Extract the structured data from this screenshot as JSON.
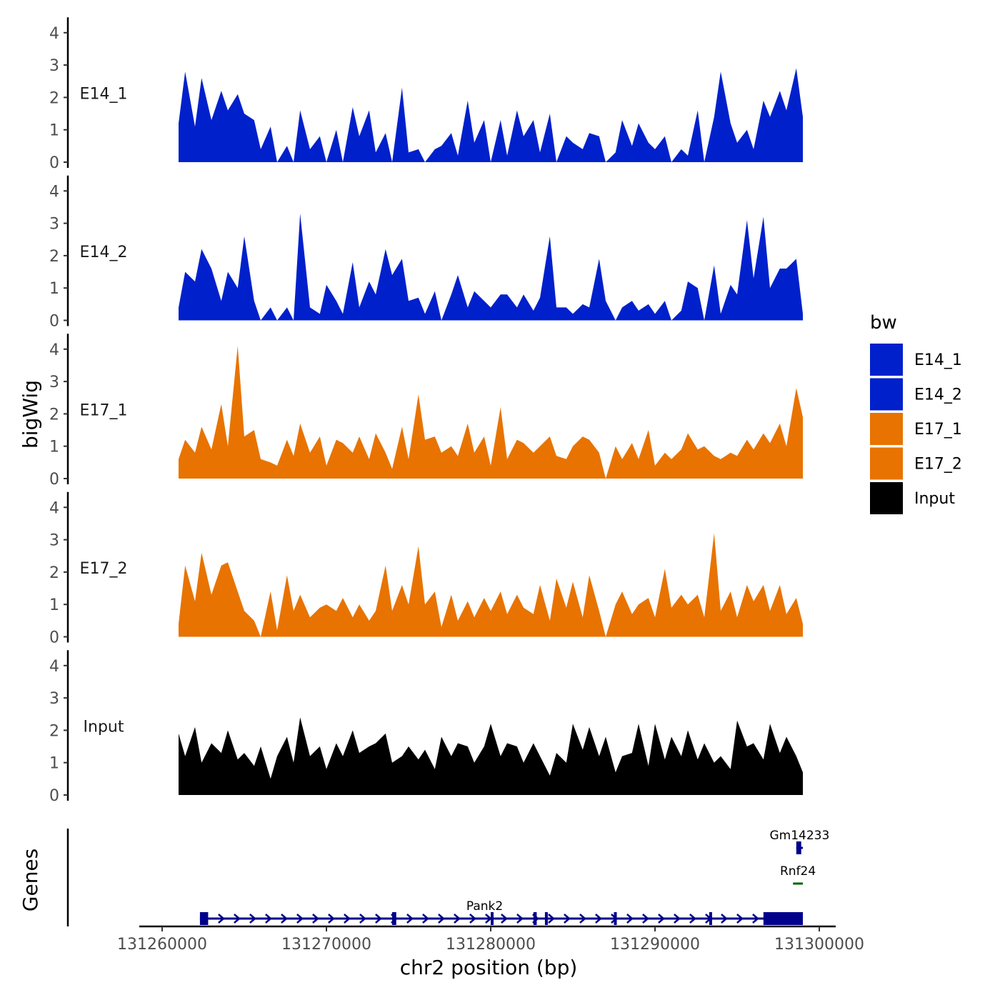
{
  "chart_data": {
    "type": "area",
    "chromosome": "chr2",
    "xlabel": "chr2 position (bp)",
    "ylabel": "bigWig",
    "genes_panel_label": "Genes",
    "xlim": [
      131258500,
      131299500
    ],
    "xticks": [
      131260000,
      131270000,
      131280000,
      131290000,
      131300000
    ],
    "xtick_labels": [
      "131260000",
      "131270000",
      "131280000",
      "131290000",
      "131300000"
    ],
    "ylim": [
      0,
      4.3
    ],
    "yticks": [
      0,
      1,
      2,
      3,
      4
    ],
    "ytick_labels": [
      "0",
      "1",
      "2",
      "3",
      "4"
    ],
    "legend": {
      "title": "bw",
      "entries": [
        {
          "label": "E14_1",
          "color": "#0020CC"
        },
        {
          "label": "E14_2",
          "color": "#0020CC"
        },
        {
          "label": "E17_1",
          "color": "#E87300"
        },
        {
          "label": "E17_2",
          "color": "#E87300"
        },
        {
          "label": "Input",
          "color": "#000000"
        }
      ]
    },
    "tracks": [
      {
        "label": "E14_1",
        "color": "#0020CC",
        "x": [
          131261000,
          131261400,
          131262000,
          131262400,
          131263000,
          131263600,
          131264000,
          131264600,
          131265000,
          131265600,
          131266000,
          131266600,
          131267000,
          131267600,
          131268000,
          131268400,
          131269000,
          131269600,
          131270000,
          131270600,
          131271000,
          131271600,
          131272000,
          131272600,
          131273000,
          131273600,
          131274000,
          131274600,
          131275000,
          131275600,
          131276000,
          131276600,
          131277000,
          131277600,
          131278000,
          131278600,
          131279000,
          131279600,
          131280000,
          131280600,
          131281000,
          131281600,
          131282000,
          131282600,
          131283000,
          131283600,
          131284000,
          131284600,
          131285000,
          131285600,
          131286000,
          131286600,
          131287000,
          131287600,
          131288000,
          131288600,
          131289000,
          131289600,
          131290000,
          131290600,
          131291000,
          131291600,
          131292000,
          131292600,
          131293000,
          131293600,
          131294000,
          131294600,
          131295000,
          131295600,
          131296000,
          131296600,
          131297000,
          131297600,
          131298000,
          131298600,
          131299000
        ],
        "y": [
          1.2,
          2.8,
          1.1,
          2.6,
          1.3,
          2.2,
          1.6,
          2.1,
          1.5,
          1.3,
          0.4,
          1.1,
          0,
          0.5,
          0,
          1.6,
          0.4,
          0.8,
          0,
          1.0,
          0,
          1.7,
          0.8,
          1.6,
          0.3,
          0.9,
          0,
          2.3,
          0.3,
          0.4,
          0,
          0.4,
          0.5,
          0.9,
          0.2,
          1.9,
          0.6,
          1.3,
          0,
          1.3,
          0.2,
          1.6,
          0.8,
          1.3,
          0.3,
          1.5,
          0,
          0.8,
          0.6,
          0.4,
          0.9,
          0.8,
          0,
          0.3,
          1.3,
          0.5,
          1.2,
          0.6,
          0.4,
          0.8,
          0,
          0.4,
          0.2,
          1.6,
          0,
          1.4,
          2.8,
          1.2,
          0.6,
          1.0,
          0.4,
          1.9,
          1.4,
          2.2,
          1.6,
          2.9,
          1.4
        ]
      },
      {
        "label": "E14_2",
        "color": "#0020CC",
        "x": [
          131261000,
          131261400,
          131262000,
          131262400,
          131263000,
          131263600,
          131264000,
          131264600,
          131265000,
          131265600,
          131266000,
          131266600,
          131267000,
          131267600,
          131268000,
          131268400,
          131269000,
          131269600,
          131270000,
          131270600,
          131271000,
          131271600,
          131272000,
          131272600,
          131273000,
          131273600,
          131274000,
          131274600,
          131275000,
          131275600,
          131276000,
          131276600,
          131277000,
          131277600,
          131278000,
          131278600,
          131279000,
          131279600,
          131280000,
          131280600,
          131281000,
          131281600,
          131282000,
          131282600,
          131283000,
          131283600,
          131284000,
          131284600,
          131285000,
          131285600,
          131286000,
          131286600,
          131287000,
          131287600,
          131288000,
          131288600,
          131289000,
          131289600,
          131290000,
          131290600,
          131291000,
          131291600,
          131292000,
          131292600,
          131293000,
          131293600,
          131294000,
          131294600,
          131295000,
          131295600,
          131296000,
          131296600,
          131297000,
          131297600,
          131298000,
          131298600,
          131299000
        ],
        "y": [
          0.4,
          1.5,
          1.2,
          2.2,
          1.6,
          0.6,
          1.5,
          1.0,
          2.6,
          0.6,
          0,
          0.4,
          0,
          0.4,
          0,
          3.3,
          0.4,
          0.2,
          1.1,
          0.6,
          0.2,
          1.8,
          0.4,
          1.2,
          0.8,
          2.2,
          1.4,
          1.9,
          0.6,
          0.7,
          0.2,
          0.9,
          0,
          0.8,
          1.4,
          0.4,
          0.9,
          0.6,
          0.4,
          0.8,
          0.8,
          0.4,
          0.8,
          0.3,
          0.7,
          2.6,
          0.4,
          0.4,
          0.2,
          0.5,
          0.4,
          1.9,
          0.6,
          0,
          0.4,
          0.6,
          0.3,
          0.5,
          0.2,
          0.6,
          0,
          0.3,
          1.2,
          1.0,
          0,
          1.7,
          0.2,
          1.1,
          0.8,
          3.1,
          1.3,
          3.2,
          1.0,
          1.6,
          1.6,
          1.9,
          0.2
        ]
      },
      {
        "label": "E17_1",
        "color": "#E87300",
        "x": [
          131261000,
          131261400,
          131262000,
          131262400,
          131263000,
          131263600,
          131264000,
          131264600,
          131265000,
          131265600,
          131266000,
          131266600,
          131267000,
          131267600,
          131268000,
          131268400,
          131269000,
          131269600,
          131270000,
          131270600,
          131271000,
          131271600,
          131272000,
          131272600,
          131273000,
          131273600,
          131274000,
          131274600,
          131275000,
          131275600,
          131276000,
          131276600,
          131277000,
          131277600,
          131278000,
          131278600,
          131279000,
          131279600,
          131280000,
          131280600,
          131281000,
          131281600,
          131282000,
          131282600,
          131283000,
          131283600,
          131284000,
          131284600,
          131285000,
          131285600,
          131286000,
          131286600,
          131287000,
          131287600,
          131288000,
          131288600,
          131289000,
          131289600,
          131290000,
          131290600,
          131291000,
          131291600,
          131292000,
          131292600,
          131293000,
          131293600,
          131294000,
          131294600,
          131295000,
          131295600,
          131296000,
          131296600,
          131297000,
          131297600,
          131298000,
          131298600,
          131299000
        ],
        "y": [
          0.6,
          1.2,
          0.8,
          1.6,
          0.9,
          2.3,
          1.0,
          4.1,
          1.3,
          1.5,
          0.6,
          0.5,
          0.4,
          1.2,
          0.7,
          1.7,
          0.8,
          1.3,
          0.4,
          1.2,
          1.1,
          0.8,
          1.3,
          0.6,
          1.4,
          0.8,
          0.3,
          1.6,
          0.6,
          2.6,
          1.2,
          1.3,
          0.8,
          1.0,
          0.7,
          1.7,
          0.8,
          1.3,
          0.4,
          2.2,
          0.6,
          1.2,
          1.1,
          0.8,
          1.0,
          1.3,
          0.7,
          0.6,
          1.0,
          1.3,
          1.2,
          0.8,
          0,
          1.0,
          0.6,
          1.1,
          0.6,
          1.5,
          0.4,
          0.8,
          0.6,
          0.9,
          1.4,
          0.9,
          1.0,
          0.7,
          0.6,
          0.8,
          0.7,
          1.2,
          0.9,
          1.4,
          1.1,
          1.7,
          1.0,
          2.8,
          1.9
        ]
      },
      {
        "label": "E17_2",
        "color": "#E87300",
        "x": [
          131261000,
          131261400,
          131262000,
          131262400,
          131263000,
          131263600,
          131264000,
          131264600,
          131265000,
          131265600,
          131266000,
          131266600,
          131267000,
          131267600,
          131268000,
          131268400,
          131269000,
          131269600,
          131270000,
          131270600,
          131271000,
          131271600,
          131272000,
          131272600,
          131273000,
          131273600,
          131274000,
          131274600,
          131275000,
          131275600,
          131276000,
          131276600,
          131277000,
          131277600,
          131278000,
          131278600,
          131279000,
          131279600,
          131280000,
          131280600,
          131281000,
          131281600,
          131282000,
          131282600,
          131283000,
          131283600,
          131284000,
          131284600,
          131285000,
          131285600,
          131286000,
          131286600,
          131287000,
          131287600,
          131288000,
          131288600,
          131289000,
          131289600,
          131290000,
          131290600,
          131291000,
          131291600,
          131292000,
          131292600,
          131293000,
          131293600,
          131294000,
          131294600,
          131295000,
          131295600,
          131296000,
          131296600,
          131297000,
          131297600,
          131298000,
          131298600,
          131299000
        ],
        "y": [
          0.4,
          2.2,
          1.1,
          2.6,
          1.3,
          2.2,
          2.3,
          1.4,
          0.8,
          0.5,
          0,
          1.4,
          0.2,
          1.9,
          0.8,
          1.3,
          0.6,
          0.9,
          1.0,
          0.8,
          1.2,
          0.6,
          1.0,
          0.5,
          0.8,
          2.2,
          0.8,
          1.6,
          1.0,
          2.8,
          1.0,
          1.4,
          0.3,
          1.3,
          0.5,
          1.1,
          0.6,
          1.2,
          0.8,
          1.4,
          0.7,
          1.3,
          0.9,
          0.7,
          1.6,
          0.5,
          1.8,
          0.9,
          1.7,
          0.6,
          1.9,
          0.8,
          0,
          1.0,
          1.4,
          0.7,
          1.0,
          1.2,
          0.6,
          2.1,
          0.9,
          1.3,
          1.0,
          1.3,
          0.6,
          3.2,
          0.8,
          1.4,
          0.6,
          1.6,
          1.1,
          1.6,
          0.8,
          1.6,
          0.7,
          1.2,
          0.4
        ]
      },
      {
        "label": "Input",
        "color": "#000000",
        "x": [
          131261000,
          131261400,
          131262000,
          131262400,
          131263000,
          131263600,
          131264000,
          131264600,
          131265000,
          131265600,
          131266000,
          131266600,
          131267000,
          131267600,
          131268000,
          131268400,
          131269000,
          131269600,
          131270000,
          131270600,
          131271000,
          131271600,
          131272000,
          131272600,
          131273000,
          131273600,
          131274000,
          131274600,
          131275000,
          131275600,
          131276000,
          131276600,
          131277000,
          131277600,
          131278000,
          131278600,
          131279000,
          131279600,
          131280000,
          131280600,
          131281000,
          131281600,
          131282000,
          131282600,
          131283000,
          131283600,
          131284000,
          131284600,
          131285000,
          131285600,
          131286000,
          131286600,
          131287000,
          131287600,
          131288000,
          131288600,
          131289000,
          131289600,
          131290000,
          131290600,
          131291000,
          131291600,
          131292000,
          131292600,
          131293000,
          131293600,
          131294000,
          131294600,
          131295000,
          131295600,
          131296000,
          131296600,
          131297000,
          131297600,
          131298000,
          131298600,
          131299000
        ],
        "y": [
          1.9,
          1.2,
          2.1,
          1.0,
          1.6,
          1.3,
          2.0,
          1.1,
          1.3,
          0.9,
          1.5,
          0.5,
          1.2,
          1.8,
          1.0,
          2.4,
          1.2,
          1.5,
          0.8,
          1.6,
          1.2,
          2.0,
          1.3,
          1.5,
          1.6,
          1.9,
          1.0,
          1.2,
          1.5,
          1.1,
          1.4,
          0.8,
          1.8,
          1.2,
          1.6,
          1.5,
          1.0,
          1.5,
          2.2,
          1.2,
          1.6,
          1.5,
          1.0,
          1.6,
          1.2,
          0.6,
          1.3,
          1.0,
          2.2,
          1.4,
          2.1,
          1.2,
          1.8,
          0.7,
          1.2,
          1.3,
          2.2,
          0.9,
          2.2,
          1.1,
          1.8,
          1.2,
          2.0,
          1.1,
          1.6,
          1.0,
          1.2,
          0.8,
          2.3,
          1.5,
          1.6,
          1.1,
          2.2,
          1.3,
          1.8,
          1.2,
          0.7
        ]
      }
    ],
    "genes": [
      {
        "name": "Pank2",
        "strand": "+",
        "color": "#00008B",
        "start": 131262300,
        "end": 131299000,
        "exons": [
          [
            131262300,
            131262800
          ],
          [
            131274000,
            131274250
          ],
          [
            131280000,
            131280150
          ],
          [
            131282600,
            131282800
          ],
          [
            131283300,
            131283450
          ],
          [
            131287500,
            131287600
          ],
          [
            131293300,
            131293400
          ],
          [
            131296600,
            131299000
          ]
        ]
      },
      {
        "name": "Rnf24",
        "strand": "-",
        "color": "#006400",
        "start": 131298400,
        "end": 131299000,
        "exons": []
      },
      {
        "name": "Gm14233",
        "strand": "+",
        "color": "#00008B",
        "start": 131298600,
        "end": 131299000,
        "exons": [
          [
            131298600,
            131298900
          ]
        ]
      }
    ]
  }
}
